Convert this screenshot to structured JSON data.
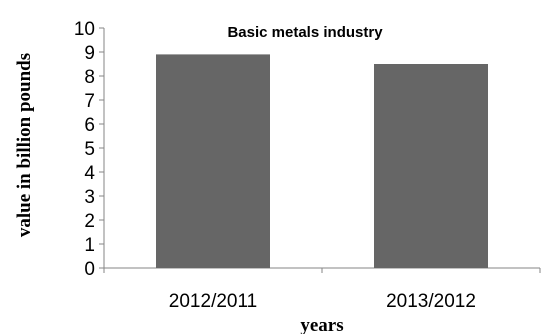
{
  "chart_data": {
    "type": "bar",
    "title": "Basic metals industry",
    "xlabel": "years",
    "ylabel": "value in billion pounds",
    "categories": [
      "2012/2011",
      "2013/2012"
    ],
    "values": [
      8.9,
      8.5
    ],
    "ylim": [
      0,
      10
    ],
    "yticks": [
      "0",
      "1",
      "2",
      "3",
      "4",
      "5",
      "6",
      "7",
      "8",
      "9",
      "10"
    ],
    "grid": false,
    "legend": "none",
    "bar_color": "#666666"
  }
}
